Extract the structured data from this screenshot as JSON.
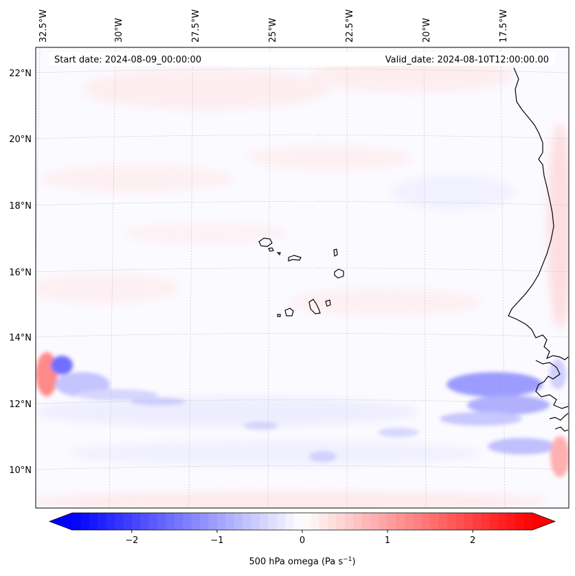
{
  "map": {
    "start_label": "Start date: 2024-08-09_00:00:00",
    "valid_label": "Valid_date: 2024-08-10T12:00:00.00",
    "lon_labels": [
      "32.5°W",
      "30°W",
      "27.5°W",
      "25°W",
      "22.5°W",
      "20°W",
      "17.5°W"
    ],
    "lat_labels": [
      "22°N",
      "20°N",
      "18°N",
      "16°N",
      "14°N",
      "12°N",
      "10°N"
    ],
    "extent": {
      "lon_min": -33,
      "lon_max": -15.2,
      "lat_min": 8.9,
      "lat_max": 22.8
    },
    "gridlines": true
  },
  "colorbar": {
    "label": "500 hPa omega (Pa s",
    "label_sup": "−1",
    "label_end": ")",
    "ticks": [
      "−2",
      "−1",
      "0",
      "1",
      "2"
    ],
    "tick_values": [
      -2,
      -1,
      0,
      1,
      2
    ],
    "vmin": -2.7,
    "vmax": 2.7,
    "extend": "both",
    "colormap": "bwr",
    "color_low": "#0000ff",
    "color_mid": "#ffffff",
    "color_high": "#ff0000"
  }
}
